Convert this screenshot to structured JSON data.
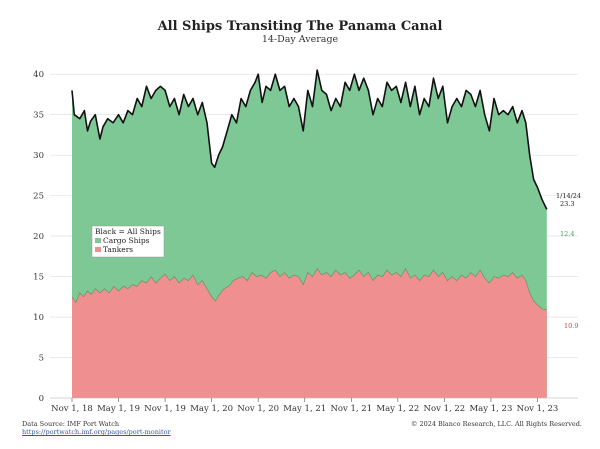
{
  "chart_data": {
    "type": "area",
    "title": "All Ships Transiting The Panama Canal",
    "subtitle": "14-Day Average",
    "ylim": [
      0,
      42
    ],
    "yticks": [
      0,
      5,
      10,
      15,
      20,
      25,
      30,
      35,
      40
    ],
    "xlim": [
      0,
      62
    ],
    "x_tick_labels": [
      "Nov 1, 18",
      "May 1, 19",
      "Nov 1, 19",
      "May 1, 20",
      "Nov 1, 20",
      "May 1, 21",
      "Nov 1, 21",
      "May 1, 22",
      "Nov 1, 22",
      "May 1, 23",
      "Nov 1, 23"
    ],
    "x_tick_positions": [
      0,
      6,
      12,
      18,
      24,
      30,
      36,
      42,
      48,
      54,
      60
    ],
    "x_unit": "months since Nov 1, 2018",
    "series": [
      {
        "name": "Black = All Ships",
        "color": "#111111",
        "points": [
          [
            0,
            38
          ],
          [
            0.3,
            35
          ],
          [
            1,
            34.5
          ],
          [
            1.6,
            35.5
          ],
          [
            2,
            33
          ],
          [
            2.4,
            34.2
          ],
          [
            3,
            35
          ],
          [
            3.6,
            32
          ],
          [
            4,
            33.5
          ],
          [
            4.6,
            34.5
          ],
          [
            5.3,
            34
          ],
          [
            6,
            35
          ],
          [
            6.6,
            34
          ],
          [
            7.2,
            35.5
          ],
          [
            7.8,
            35
          ],
          [
            8.4,
            37
          ],
          [
            9,
            36
          ],
          [
            9.6,
            38.5
          ],
          [
            10.2,
            37
          ],
          [
            10.8,
            38
          ],
          [
            11.4,
            38.5
          ],
          [
            12,
            38
          ],
          [
            12.6,
            36
          ],
          [
            13.2,
            37
          ],
          [
            13.8,
            35
          ],
          [
            14.4,
            37.5
          ],
          [
            15,
            36
          ],
          [
            15.6,
            37
          ],
          [
            16.2,
            35
          ],
          [
            16.8,
            36.5
          ],
          [
            17.4,
            34
          ],
          [
            18,
            29
          ],
          [
            18.4,
            28.5
          ],
          [
            18.9,
            30
          ],
          [
            19.4,
            31
          ],
          [
            20,
            33
          ],
          [
            20.6,
            35
          ],
          [
            21.2,
            34
          ],
          [
            21.8,
            37
          ],
          [
            22.4,
            36
          ],
          [
            23,
            38
          ],
          [
            23.6,
            39
          ],
          [
            24,
            40
          ],
          [
            24.5,
            36.5
          ],
          [
            25,
            38.5
          ],
          [
            25.6,
            38
          ],
          [
            26.2,
            40
          ],
          [
            26.8,
            38
          ],
          [
            27.4,
            38.5
          ],
          [
            28,
            36
          ],
          [
            28.6,
            37
          ],
          [
            29.2,
            36
          ],
          [
            29.8,
            33
          ],
          [
            30.4,
            38
          ],
          [
            31,
            36
          ],
          [
            31.6,
            40.5
          ],
          [
            32.2,
            38
          ],
          [
            32.8,
            37.5
          ],
          [
            33.4,
            35.5
          ],
          [
            34,
            37
          ],
          [
            34.6,
            36
          ],
          [
            35.2,
            39
          ],
          [
            35.8,
            38
          ],
          [
            36.4,
            40
          ],
          [
            37,
            38
          ],
          [
            37.6,
            39.5
          ],
          [
            38.2,
            38
          ],
          [
            38.8,
            35
          ],
          [
            39.4,
            37
          ],
          [
            40,
            36
          ],
          [
            40.6,
            39
          ],
          [
            41.2,
            38
          ],
          [
            41.8,
            38.5
          ],
          [
            42.4,
            36.5
          ],
          [
            43,
            39
          ],
          [
            43.6,
            36
          ],
          [
            44.2,
            38.5
          ],
          [
            44.8,
            35
          ],
          [
            45.4,
            37
          ],
          [
            46,
            36
          ],
          [
            46.6,
            39.5
          ],
          [
            47.2,
            37
          ],
          [
            47.8,
            38.5
          ],
          [
            48.4,
            34
          ],
          [
            49,
            36
          ],
          [
            49.6,
            37
          ],
          [
            50.2,
            36
          ],
          [
            50.8,
            38
          ],
          [
            51.4,
            37.5
          ],
          [
            52,
            36
          ],
          [
            52.6,
            38
          ],
          [
            53.2,
            35
          ],
          [
            53.8,
            33
          ],
          [
            54.4,
            37
          ],
          [
            55,
            35
          ],
          [
            55.6,
            35.5
          ],
          [
            56.2,
            35
          ],
          [
            56.8,
            36
          ],
          [
            57.4,
            34
          ],
          [
            58,
            35.5
          ],
          [
            58.5,
            34
          ],
          [
            59,
            30
          ],
          [
            59.5,
            27
          ],
          [
            60,
            26
          ],
          [
            60.6,
            24.5
          ],
          [
            61.2,
            23.3
          ]
        ]
      },
      {
        "name": "Cargo Ships",
        "color": "#7ec896",
        "note": "stacked layer between Tankers line and All Ships line"
      },
      {
        "name": "Tankers",
        "color": "#f08f8f",
        "points": [
          [
            0,
            12.5
          ],
          [
            0.5,
            11.8
          ],
          [
            1,
            13
          ],
          [
            1.5,
            12.5
          ],
          [
            2,
            13.2
          ],
          [
            2.5,
            12.8
          ],
          [
            3,
            13.5
          ],
          [
            3.6,
            13
          ],
          [
            4.2,
            13.5
          ],
          [
            4.8,
            13
          ],
          [
            5.4,
            13.8
          ],
          [
            6,
            13.2
          ],
          [
            6.6,
            13.8
          ],
          [
            7.2,
            13.5
          ],
          [
            7.8,
            14
          ],
          [
            8.4,
            13.8
          ],
          [
            9,
            14.5
          ],
          [
            9.6,
            14.2
          ],
          [
            10.2,
            15
          ],
          [
            10.8,
            14.2
          ],
          [
            11.4,
            14.8
          ],
          [
            12,
            15.3
          ],
          [
            12.6,
            14.5
          ],
          [
            13.2,
            15
          ],
          [
            13.8,
            14.2
          ],
          [
            14.4,
            14.8
          ],
          [
            15,
            14.5
          ],
          [
            15.6,
            15.2
          ],
          [
            16.2,
            14
          ],
          [
            16.8,
            14.5
          ],
          [
            17.4,
            13.5
          ],
          [
            18,
            12.5
          ],
          [
            18.5,
            12
          ],
          [
            19,
            12.8
          ],
          [
            19.6,
            13.5
          ],
          [
            20.2,
            13.8
          ],
          [
            20.8,
            14.5
          ],
          [
            21.4,
            14.8
          ],
          [
            22,
            15
          ],
          [
            22.6,
            14.5
          ],
          [
            23.2,
            15.5
          ],
          [
            23.8,
            15
          ],
          [
            24.4,
            15.2
          ],
          [
            25,
            14.8
          ],
          [
            25.6,
            15.5
          ],
          [
            26.2,
            15.8
          ],
          [
            26.8,
            15
          ],
          [
            27.4,
            15.5
          ],
          [
            28,
            14.8
          ],
          [
            28.6,
            15.2
          ],
          [
            29.2,
            15
          ],
          [
            29.8,
            14
          ],
          [
            30.4,
            15.5
          ],
          [
            31,
            15
          ],
          [
            31.6,
            16
          ],
          [
            32.2,
            15.2
          ],
          [
            32.8,
            15.5
          ],
          [
            33.4,
            15
          ],
          [
            34,
            15.8
          ],
          [
            34.6,
            15.2
          ],
          [
            35.2,
            15.5
          ],
          [
            35.8,
            14.8
          ],
          [
            36.4,
            15.2
          ],
          [
            37,
            15.8
          ],
          [
            37.6,
            15
          ],
          [
            38.2,
            15.5
          ],
          [
            38.8,
            14.5
          ],
          [
            39.4,
            15.2
          ],
          [
            40,
            15
          ],
          [
            40.6,
            15.8
          ],
          [
            41.2,
            15.2
          ],
          [
            41.8,
            15.5
          ],
          [
            42.4,
            15
          ],
          [
            43,
            16
          ],
          [
            43.6,
            14.8
          ],
          [
            44.2,
            15.2
          ],
          [
            44.8,
            14.5
          ],
          [
            45.4,
            15.2
          ],
          [
            46,
            15
          ],
          [
            46.6,
            15.8
          ],
          [
            47.2,
            15
          ],
          [
            47.8,
            15.5
          ],
          [
            48.4,
            14.5
          ],
          [
            49,
            15
          ],
          [
            49.6,
            14.5
          ],
          [
            50.2,
            15.2
          ],
          [
            50.8,
            14.8
          ],
          [
            51.4,
            15.5
          ],
          [
            52,
            15
          ],
          [
            52.6,
            15.8
          ],
          [
            53.2,
            14.8
          ],
          [
            53.8,
            14.2
          ],
          [
            54.4,
            15
          ],
          [
            55,
            14.8
          ],
          [
            55.6,
            15.2
          ],
          [
            56.2,
            15
          ],
          [
            56.8,
            15.5
          ],
          [
            57.4,
            14.8
          ],
          [
            58,
            15.2
          ],
          [
            58.5,
            14.5
          ],
          [
            59,
            13
          ],
          [
            59.5,
            12
          ],
          [
            60,
            11.5
          ],
          [
            60.6,
            11
          ],
          [
            61.2,
            10.9
          ]
        ]
      }
    ],
    "end_labels": {
      "date": "1/14/24",
      "all_ships": "23.3",
      "cargo": "12.4",
      "tankers": "10.9"
    },
    "legend": {
      "position": "left-middle",
      "items": [
        "Black = All Ships",
        "Cargo Ships",
        "Tankers"
      ]
    },
    "grid": true
  },
  "footer": {
    "source_label": "Data Source: IMF Port Watch",
    "source_url": "https://portwatch.imf.org/pages/port-monitor",
    "copyright": "© 2024 Blanco Research, LLC. All Rights Reserved."
  },
  "colors": {
    "cargo": "#7ec896",
    "tankers": "#f08f8f",
    "all_ships": "#111111",
    "grid": "#dddddd",
    "cargo_label": "#3a9c5a",
    "tanker_label": "#c04a4a"
  }
}
